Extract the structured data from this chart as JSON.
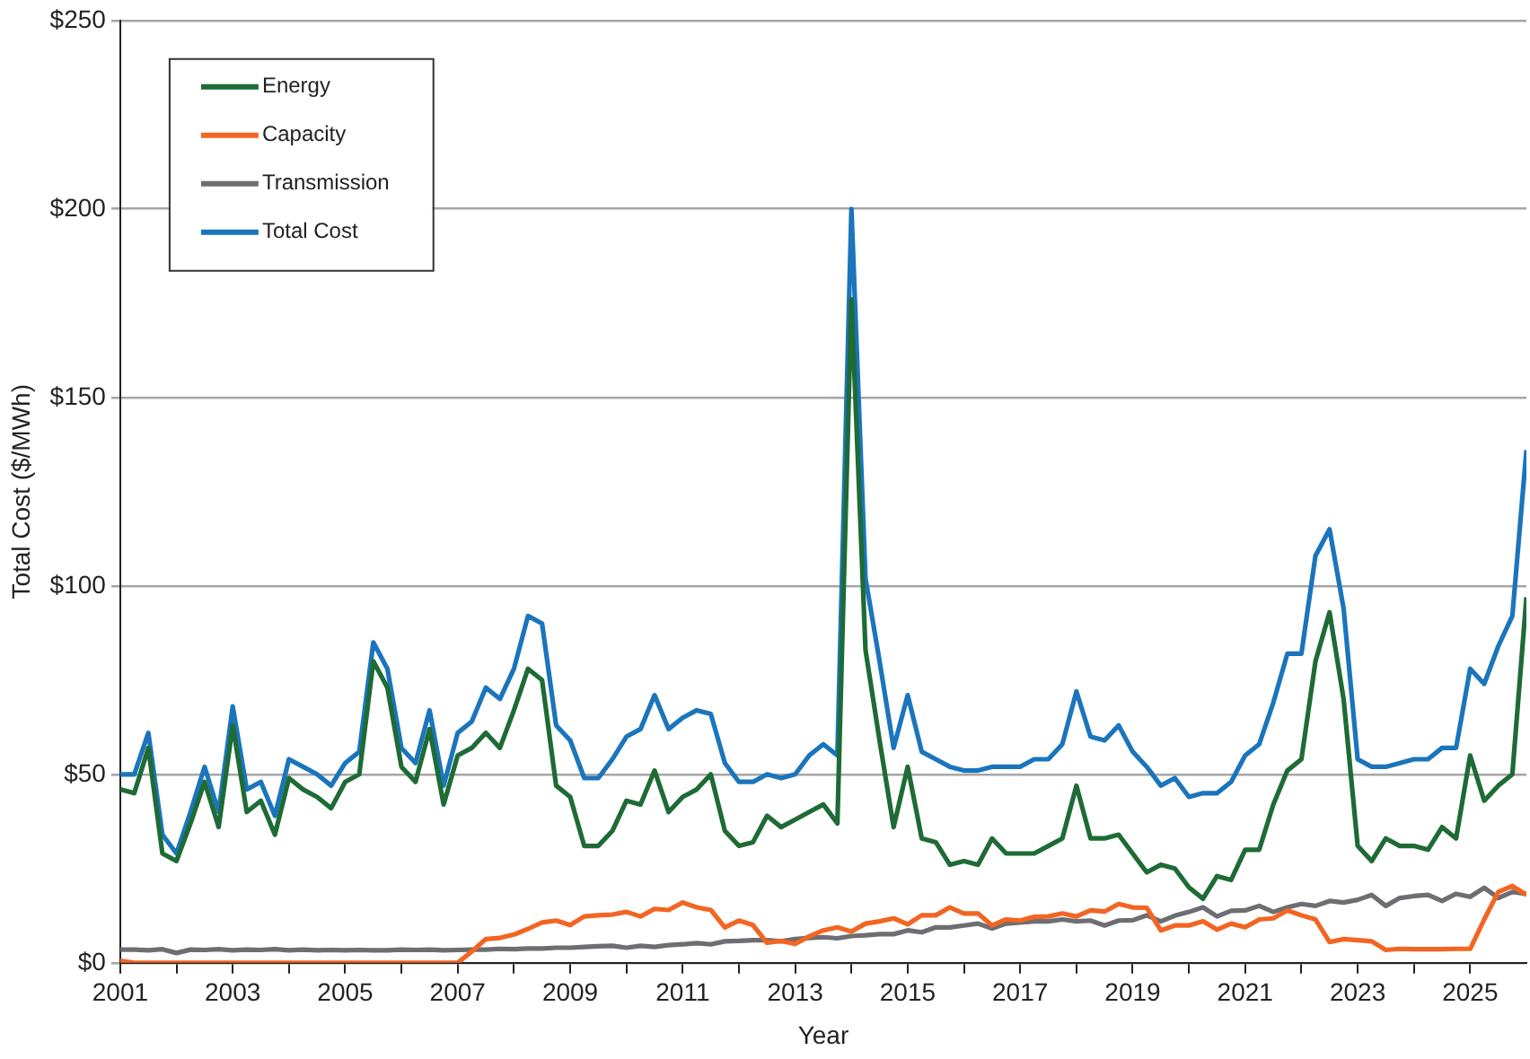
{
  "chart_data": {
    "type": "line",
    "xlabel": "Year",
    "ylabel": "Total Cost ($/MWh)",
    "x": [
      2001,
      2001.25,
      2001.5,
      2001.75,
      2002,
      2002.25,
      2002.5,
      2002.75,
      2003,
      2003.25,
      2003.5,
      2003.75,
      2004,
      2004.25,
      2004.5,
      2004.75,
      2005,
      2005.25,
      2005.5,
      2005.75,
      2006,
      2006.25,
      2006.5,
      2006.75,
      2007,
      2007.25,
      2007.5,
      2007.75,
      2008,
      2008.25,
      2008.5,
      2008.75,
      2009,
      2009.25,
      2009.5,
      2009.75,
      2010,
      2010.25,
      2010.5,
      2010.75,
      2011,
      2011.25,
      2011.5,
      2011.75,
      2012,
      2012.25,
      2012.5,
      2012.75,
      2013,
      2013.25,
      2013.5,
      2013.75,
      2014,
      2014.25,
      2014.5,
      2014.75,
      2015,
      2015.25,
      2015.5,
      2015.75,
      2016,
      2016.25,
      2016.5,
      2016.75,
      2017,
      2017.25,
      2017.5,
      2017.75,
      2018,
      2018.25,
      2018.5,
      2018.75,
      2019,
      2019.25,
      2019.5,
      2019.75,
      2020,
      2020.25,
      2020.5,
      2020.75,
      2021,
      2021.25,
      2021.5,
      2021.75,
      2022,
      2022.25,
      2022.5,
      2022.75,
      2023,
      2023.25,
      2023.5,
      2023.75,
      2024,
      2024.25,
      2024.5,
      2024.75,
      2025,
      2025.25,
      2025.5,
      2025.75,
      2026
    ],
    "series": [
      {
        "name": "Energy",
        "color": "#1e6b35",
        "values": [
          46,
          45,
          57,
          29,
          27,
          37,
          48,
          36,
          63,
          40,
          43,
          34,
          49,
          46,
          44,
          41,
          48,
          50,
          80,
          73,
          52,
          48,
          62,
          42,
          55,
          57,
          61,
          57,
          67,
          78,
          75,
          47,
          44,
          31,
          31,
          35,
          43,
          42,
          51,
          40,
          44,
          46,
          50,
          35,
          31,
          32,
          39,
          36,
          38,
          40,
          42,
          37,
          176,
          83,
          59,
          36,
          52,
          33,
          32,
          26,
          27,
          26,
          33,
          29,
          29,
          29,
          31,
          33,
          47,
          33,
          33,
          34,
          29,
          24,
          26,
          25,
          20,
          17,
          23,
          22,
          30,
          30,
          42,
          51,
          54,
          80,
          93,
          70,
          31,
          27,
          33,
          31,
          31,
          30,
          36,
          33,
          55,
          43,
          47,
          50,
          97
        ]
      },
      {
        "name": "Capacity",
        "color": "#f26522",
        "values": [
          0.5,
          0,
          0,
          0,
          0,
          0,
          0,
          0,
          0,
          0,
          0,
          0,
          0,
          0,
          0,
          0,
          0,
          0,
          0,
          0,
          0,
          0,
          0,
          0,
          0,
          3,
          6.3,
          6.6,
          7.5,
          9,
          10.7,
          11.2,
          10,
          12.3,
          12.6,
          12.8,
          13.5,
          12.3,
          14.3,
          14,
          16,
          14.7,
          14,
          9.4,
          11.2,
          10,
          5.3,
          5.8,
          5,
          7,
          8.6,
          9.4,
          8.3,
          10.4,
          11,
          11.8,
          10.2,
          12.6,
          12.6,
          14.7,
          13.1,
          13.1,
          9.9,
          11.5,
          11.2,
          12.2,
          12.3,
          13.1,
          12.3,
          13.9,
          13.6,
          15.6,
          14.7,
          14.6,
          8.6,
          9.9,
          9.9,
          11,
          8.8,
          10.4,
          9.4,
          11.5,
          11.8,
          13.9,
          12.6,
          11.5,
          5.5,
          6.3,
          6,
          5.7,
          3.4,
          3.7,
          3.6,
          3.6,
          3.6,
          3.7,
          3.7,
          11.5,
          18.8,
          20.4,
          18
        ]
      },
      {
        "name": "Transmission",
        "color": "#6d6e71",
        "values": [
          3.5,
          3.5,
          3.3,
          3.6,
          2.6,
          3.5,
          3.4,
          3.6,
          3.3,
          3.5,
          3.4,
          3.6,
          3.3,
          3.5,
          3.3,
          3.4,
          3.3,
          3.4,
          3.3,
          3.3,
          3.5,
          3.4,
          3.5,
          3.3,
          3.4,
          3.5,
          3.5,
          3.7,
          3.6,
          3.8,
          3.8,
          4,
          4,
          4.2,
          4.4,
          4.5,
          4,
          4.5,
          4.2,
          4.7,
          4.9,
          5.2,
          4.9,
          5.7,
          5.8,
          6,
          6,
          5.7,
          6.3,
          6.6,
          6.8,
          6.5,
          7.1,
          7.3,
          7.6,
          7.6,
          8.6,
          8.1,
          9.4,
          9.4,
          9.9,
          10.4,
          9.1,
          10.4,
          10.7,
          11,
          11,
          11.5,
          11,
          11.2,
          9.9,
          11.2,
          11.3,
          12.6,
          11,
          12.5,
          13.5,
          14.7,
          12.3,
          13.8,
          13.9,
          15.1,
          13.5,
          14.7,
          15.6,
          15.1,
          16.4,
          16,
          16.7,
          18,
          15.1,
          17.2,
          17.7,
          18,
          16.4,
          18.3,
          17.5,
          19.9,
          17.2,
          18.8,
          18.3
        ]
      },
      {
        "name": "Total Cost",
        "color": "#1a75bc",
        "values": [
          50,
          50,
          61,
          34,
          29,
          40,
          52,
          40,
          68,
          46,
          48,
          39,
          54,
          52,
          50,
          47,
          53,
          56,
          85,
          78,
          57,
          53,
          67,
          47,
          61,
          64,
          73,
          70,
          78,
          92,
          90,
          63,
          59,
          49,
          49,
          54,
          60,
          62,
          71,
          62,
          65,
          67,
          66,
          53,
          48,
          48,
          50,
          49,
          50,
          55,
          58,
          55,
          200,
          102,
          80,
          57,
          71,
          56,
          54,
          52,
          51,
          51,
          52,
          52,
          52,
          54,
          54,
          58,
          72,
          60,
          59,
          63,
          56,
          52,
          47,
          49,
          44,
          45,
          45,
          48,
          55,
          58,
          69,
          82,
          82,
          108,
          115,
          94,
          54,
          52,
          52,
          53,
          54,
          54,
          57,
          57,
          78,
          74,
          84,
          92,
          136
        ]
      }
    ],
    "xlim": [
      2001,
      2026
    ],
    "xticks": [
      2001,
      {
        "value": 2002,
        "label": null
      },
      2003,
      {
        "value": 2004,
        "label": null
      },
      2005,
      {
        "value": 2006,
        "label": null
      },
      2007,
      {
        "value": 2008,
        "label": null
      },
      2009,
      {
        "value": 2010,
        "label": null
      },
      2011,
      {
        "value": 2012,
        "label": null
      },
      2013,
      {
        "value": 2014,
        "label": null
      },
      2015,
      {
        "value": 2016,
        "label": null
      },
      2017,
      {
        "value": 2018,
        "label": null
      },
      2019,
      {
        "value": 2020,
        "label": null
      },
      2021,
      {
        "value": 2022,
        "label": null
      },
      2023,
      {
        "value": 2024,
        "label": null
      },
      2025
    ],
    "ylim": [
      0,
      250
    ],
    "yticks": [
      {
        "value": 0,
        "label": "$0"
      },
      {
        "value": 50,
        "label": "$50"
      },
      {
        "value": 100,
        "label": "$100"
      },
      {
        "value": 150,
        "label": "$150"
      },
      {
        "value": 200,
        "label": "$200"
      },
      {
        "value": 250,
        "label": "$250"
      }
    ],
    "grid": "y",
    "legend": "top left",
    "line_style": "solid"
  }
}
